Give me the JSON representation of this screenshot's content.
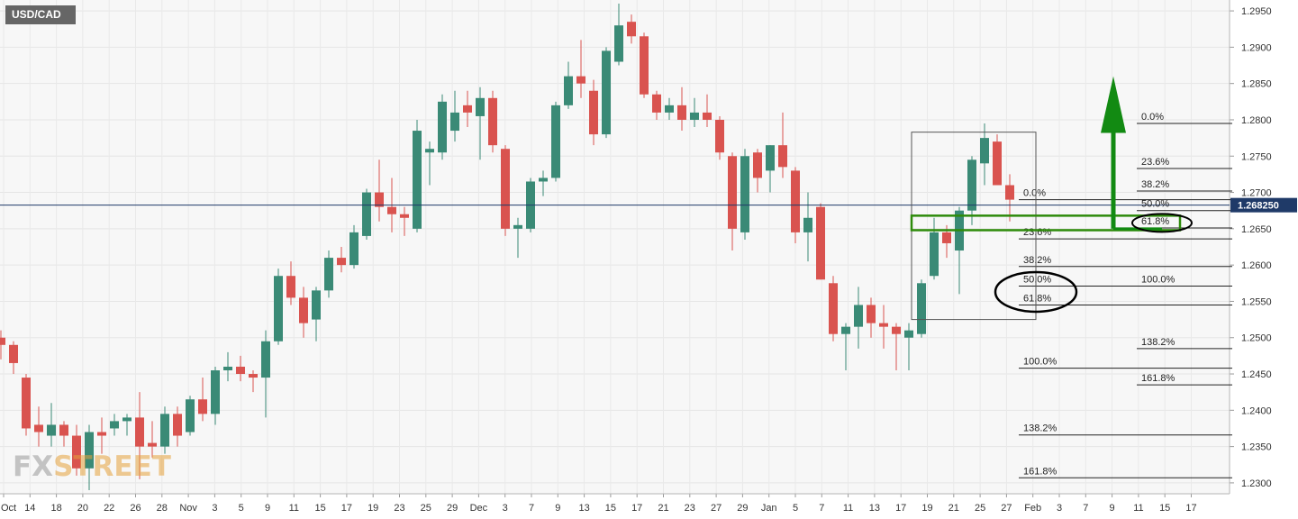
{
  "symbol": "USD/CAD",
  "watermark": {
    "part1": "FX",
    "part2": "STREET"
  },
  "current_price": {
    "value": 1.26825,
    "label": "1.268250",
    "color": "#1f3a68"
  },
  "colors": {
    "bull": "#3a8a76",
    "bear": "#d9534f",
    "fib": "#222222",
    "zone": "#2e8b0b",
    "arrow": "#128a12",
    "box": "#555555",
    "ellipse": "#000000"
  },
  "chart_data": {
    "type": "candlestick",
    "y_range": [
      1.2285,
      1.2965
    ],
    "y_ticks": [
      "1.2950",
      "1.2900",
      "1.2850",
      "1.2800",
      "1.2750",
      "1.2700",
      "1.2650",
      "1.2600",
      "1.2550",
      "1.2500",
      "1.2450",
      "1.2400",
      "1.2350",
      "1.2300"
    ],
    "x_ticks": [
      "Oct",
      "14",
      "18",
      "20",
      "22",
      "26",
      "28",
      "Nov",
      "3",
      "5",
      "9",
      "11",
      "15",
      "17",
      "19",
      "23",
      "25",
      "29",
      "Dec",
      "3",
      "7",
      "9",
      "13",
      "15",
      "17",
      "21",
      "23",
      "27",
      "29",
      "Jan",
      "5",
      "7",
      "11",
      "13",
      "17",
      "19",
      "21",
      "25",
      "27",
      "Feb",
      "3",
      "7",
      "9",
      "11",
      "15",
      "17"
    ],
    "candles": [
      {
        "o": 1.25,
        "h": 1.251,
        "l": 1.247,
        "c": 1.249
      },
      {
        "o": 1.249,
        "h": 1.2495,
        "l": 1.245,
        "c": 1.2465
      },
      {
        "o": 1.2445,
        "h": 1.245,
        "l": 1.2365,
        "c": 1.2375
      },
      {
        "o": 1.238,
        "h": 1.2405,
        "l": 1.235,
        "c": 1.237
      },
      {
        "o": 1.2365,
        "h": 1.241,
        "l": 1.235,
        "c": 1.238
      },
      {
        "o": 1.238,
        "h": 1.2385,
        "l": 1.235,
        "c": 1.2365
      },
      {
        "o": 1.2365,
        "h": 1.238,
        "l": 1.231,
        "c": 1.232
      },
      {
        "o": 1.232,
        "h": 1.238,
        "l": 1.229,
        "c": 1.237
      },
      {
        "o": 1.237,
        "h": 1.239,
        "l": 1.234,
        "c": 1.2365
      },
      {
        "o": 1.2375,
        "h": 1.2395,
        "l": 1.2365,
        "c": 1.2385
      },
      {
        "o": 1.2385,
        "h": 1.2395,
        "l": 1.2365,
        "c": 1.239
      },
      {
        "o": 1.239,
        "h": 1.2425,
        "l": 1.2305,
        "c": 1.235
      },
      {
        "o": 1.2355,
        "h": 1.2385,
        "l": 1.2335,
        "c": 1.235
      },
      {
        "o": 1.235,
        "h": 1.2405,
        "l": 1.234,
        "c": 1.2395
      },
      {
        "o": 1.2395,
        "h": 1.2405,
        "l": 1.235,
        "c": 1.2365
      },
      {
        "o": 1.237,
        "h": 1.242,
        "l": 1.2365,
        "c": 1.2415
      },
      {
        "o": 1.2415,
        "h": 1.2445,
        "l": 1.2385,
        "c": 1.2395
      },
      {
        "o": 1.2395,
        "h": 1.246,
        "l": 1.238,
        "c": 1.2455
      },
      {
        "o": 1.2455,
        "h": 1.248,
        "l": 1.244,
        "c": 1.246
      },
      {
        "o": 1.246,
        "h": 1.2475,
        "l": 1.244,
        "c": 1.245
      },
      {
        "o": 1.245,
        "h": 1.2455,
        "l": 1.2425,
        "c": 1.2445
      },
      {
        "o": 1.2445,
        "h": 1.251,
        "l": 1.239,
        "c": 1.2495
      },
      {
        "o": 1.2495,
        "h": 1.2595,
        "l": 1.249,
        "c": 1.2585
      },
      {
        "o": 1.2585,
        "h": 1.2605,
        "l": 1.2545,
        "c": 1.2555
      },
      {
        "o": 1.2555,
        "h": 1.257,
        "l": 1.25,
        "c": 1.252
      },
      {
        "o": 1.2525,
        "h": 1.257,
        "l": 1.2495,
        "c": 1.2565
      },
      {
        "o": 1.2565,
        "h": 1.262,
        "l": 1.2555,
        "c": 1.261
      },
      {
        "o": 1.261,
        "h": 1.2625,
        "l": 1.259,
        "c": 1.26
      },
      {
        "o": 1.26,
        "h": 1.2655,
        "l": 1.2595,
        "c": 1.2645
      },
      {
        "o": 1.264,
        "h": 1.2705,
        "l": 1.2635,
        "c": 1.27
      },
      {
        "o": 1.27,
        "h": 1.2745,
        "l": 1.266,
        "c": 1.268
      },
      {
        "o": 1.268,
        "h": 1.272,
        "l": 1.2645,
        "c": 1.267
      },
      {
        "o": 1.267,
        "h": 1.268,
        "l": 1.264,
        "c": 1.2665
      },
      {
        "o": 1.265,
        "h": 1.28,
        "l": 1.2645,
        "c": 1.2785
      },
      {
        "o": 1.2755,
        "h": 1.277,
        "l": 1.271,
        "c": 1.276
      },
      {
        "o": 1.2755,
        "h": 1.2835,
        "l": 1.2745,
        "c": 1.2825
      },
      {
        "o": 1.2785,
        "h": 1.284,
        "l": 1.277,
        "c": 1.281
      },
      {
        "o": 1.282,
        "h": 1.284,
        "l": 1.279,
        "c": 1.281
      },
      {
        "o": 1.2805,
        "h": 1.2845,
        "l": 1.2745,
        "c": 1.283
      },
      {
        "o": 1.283,
        "h": 1.284,
        "l": 1.2755,
        "c": 1.2765
      },
      {
        "o": 1.276,
        "h": 1.2765,
        "l": 1.264,
        "c": 1.265
      },
      {
        "o": 1.265,
        "h": 1.2665,
        "l": 1.261,
        "c": 1.2655
      },
      {
        "o": 1.265,
        "h": 1.272,
        "l": 1.2645,
        "c": 1.2715
      },
      {
        "o": 1.2715,
        "h": 1.273,
        "l": 1.2695,
        "c": 1.272
      },
      {
        "o": 1.272,
        "h": 1.2825,
        "l": 1.2715,
        "c": 1.282
      },
      {
        "o": 1.282,
        "h": 1.288,
        "l": 1.2815,
        "c": 1.286
      },
      {
        "o": 1.286,
        "h": 1.291,
        "l": 1.283,
        "c": 1.285
      },
      {
        "o": 1.284,
        "h": 1.2855,
        "l": 1.2765,
        "c": 1.278
      },
      {
        "o": 1.278,
        "h": 1.29,
        "l": 1.2775,
        "c": 1.2895
      },
      {
        "o": 1.288,
        "h": 1.296,
        "l": 1.2875,
        "c": 1.293
      },
      {
        "o": 1.2935,
        "h": 1.2945,
        "l": 1.2905,
        "c": 1.2915
      },
      {
        "o": 1.2915,
        "h": 1.292,
        "l": 1.283,
        "c": 1.2835
      },
      {
        "o": 1.2835,
        "h": 1.284,
        "l": 1.28,
        "c": 1.281
      },
      {
        "o": 1.281,
        "h": 1.283,
        "l": 1.28,
        "c": 1.282
      },
      {
        "o": 1.282,
        "h": 1.2845,
        "l": 1.2785,
        "c": 1.28
      },
      {
        "o": 1.28,
        "h": 1.283,
        "l": 1.279,
        "c": 1.281
      },
      {
        "o": 1.281,
        "h": 1.2835,
        "l": 1.279,
        "c": 1.28
      },
      {
        "o": 1.28,
        "h": 1.2805,
        "l": 1.2745,
        "c": 1.2755
      },
      {
        "o": 1.275,
        "h": 1.2755,
        "l": 1.262,
        "c": 1.265
      },
      {
        "o": 1.2645,
        "h": 1.276,
        "l": 1.2635,
        "c": 1.275
      },
      {
        "o": 1.2755,
        "h": 1.276,
        "l": 1.27,
        "c": 1.272
      },
      {
        "o": 1.273,
        "h": 1.2765,
        "l": 1.27,
        "c": 1.2765
      },
      {
        "o": 1.2765,
        "h": 1.281,
        "l": 1.272,
        "c": 1.2735
      },
      {
        "o": 1.273,
        "h": 1.2735,
        "l": 1.263,
        "c": 1.2645
      },
      {
        "o": 1.2645,
        "h": 1.27,
        "l": 1.2605,
        "c": 1.2665
      },
      {
        "o": 1.268,
        "h": 1.2685,
        "l": 1.258,
        "c": 1.258
      },
      {
        "o": 1.2575,
        "h": 1.2585,
        "l": 1.2495,
        "c": 1.2505
      },
      {
        "o": 1.2505,
        "h": 1.252,
        "l": 1.2455,
        "c": 1.2515
      },
      {
        "o": 1.2515,
        "h": 1.257,
        "l": 1.2485,
        "c": 1.2545
      },
      {
        "o": 1.2545,
        "h": 1.2555,
        "l": 1.25,
        "c": 1.252
      },
      {
        "o": 1.252,
        "h": 1.2545,
        "l": 1.2485,
        "c": 1.2515
      },
      {
        "o": 1.2515,
        "h": 1.252,
        "l": 1.2455,
        "c": 1.2505
      },
      {
        "o": 1.25,
        "h": 1.252,
        "l": 1.2455,
        "c": 1.251
      },
      {
        "o": 1.2505,
        "h": 1.258,
        "l": 1.25,
        "c": 1.2575
      },
      {
        "o": 1.2585,
        "h": 1.2665,
        "l": 1.258,
        "c": 1.2645
      },
      {
        "o": 1.2645,
        "h": 1.2655,
        "l": 1.261,
        "c": 1.263
      },
      {
        "o": 1.262,
        "h": 1.268,
        "l": 1.256,
        "c": 1.2675
      },
      {
        "o": 1.2675,
        "h": 1.275,
        "l": 1.2655,
        "c": 1.2745
      },
      {
        "o": 1.274,
        "h": 1.2795,
        "l": 1.271,
        "c": 1.2775
      },
      {
        "o": 1.277,
        "h": 1.278,
        "l": 1.271,
        "c": 1.271
      },
      {
        "o": 1.271,
        "h": 1.2725,
        "l": 1.266,
        "c": 1.269
      }
    ],
    "fib_sets": [
      {
        "name": "swing-1",
        "levels": [
          {
            "label": "0.0%",
            "price": 1.2795
          },
          {
            "label": "23.6%",
            "price": 1.2733
          },
          {
            "label": "38.2%",
            "price": 1.2702
          },
          {
            "label": "50.0%",
            "price": 1.2675
          },
          {
            "label": "61.8%",
            "price": 1.2651
          },
          {
            "label": "100.0%",
            "price": 1.2571
          },
          {
            "label": "138.2%",
            "price": 1.2485
          },
          {
            "label": "161.8%",
            "price": 1.2435
          }
        ]
      },
      {
        "name": "swing-2",
        "levels": [
          {
            "label": "0.0%",
            "price": 1.269
          },
          {
            "label": "23.6%",
            "price": 1.2636
          },
          {
            "label": "38.2%",
            "price": 1.2598
          },
          {
            "label": "50.0%",
            "price": 1.2571
          },
          {
            "label": "61.8%",
            "price": 1.2545
          },
          {
            "label": "100.0%",
            "price": 1.2458
          },
          {
            "label": "138.2%",
            "price": 1.2366
          },
          {
            "label": "161.8%",
            "price": 1.2307
          }
        ]
      }
    ],
    "annotations": [
      {
        "type": "rectangle",
        "from_index": 73,
        "to_index": 80,
        "top": 1.2783,
        "bottom": 1.2525
      },
      {
        "type": "zone",
        "from_index": 73,
        "to_index": "right",
        "top": 1.2668,
        "bottom": 1.2648
      },
      {
        "type": "ellipse",
        "label": "61.8%"
      },
      {
        "type": "ellipse",
        "label": "50.0% / 61.8%"
      },
      {
        "type": "arrow",
        "direction": "up"
      }
    ]
  }
}
